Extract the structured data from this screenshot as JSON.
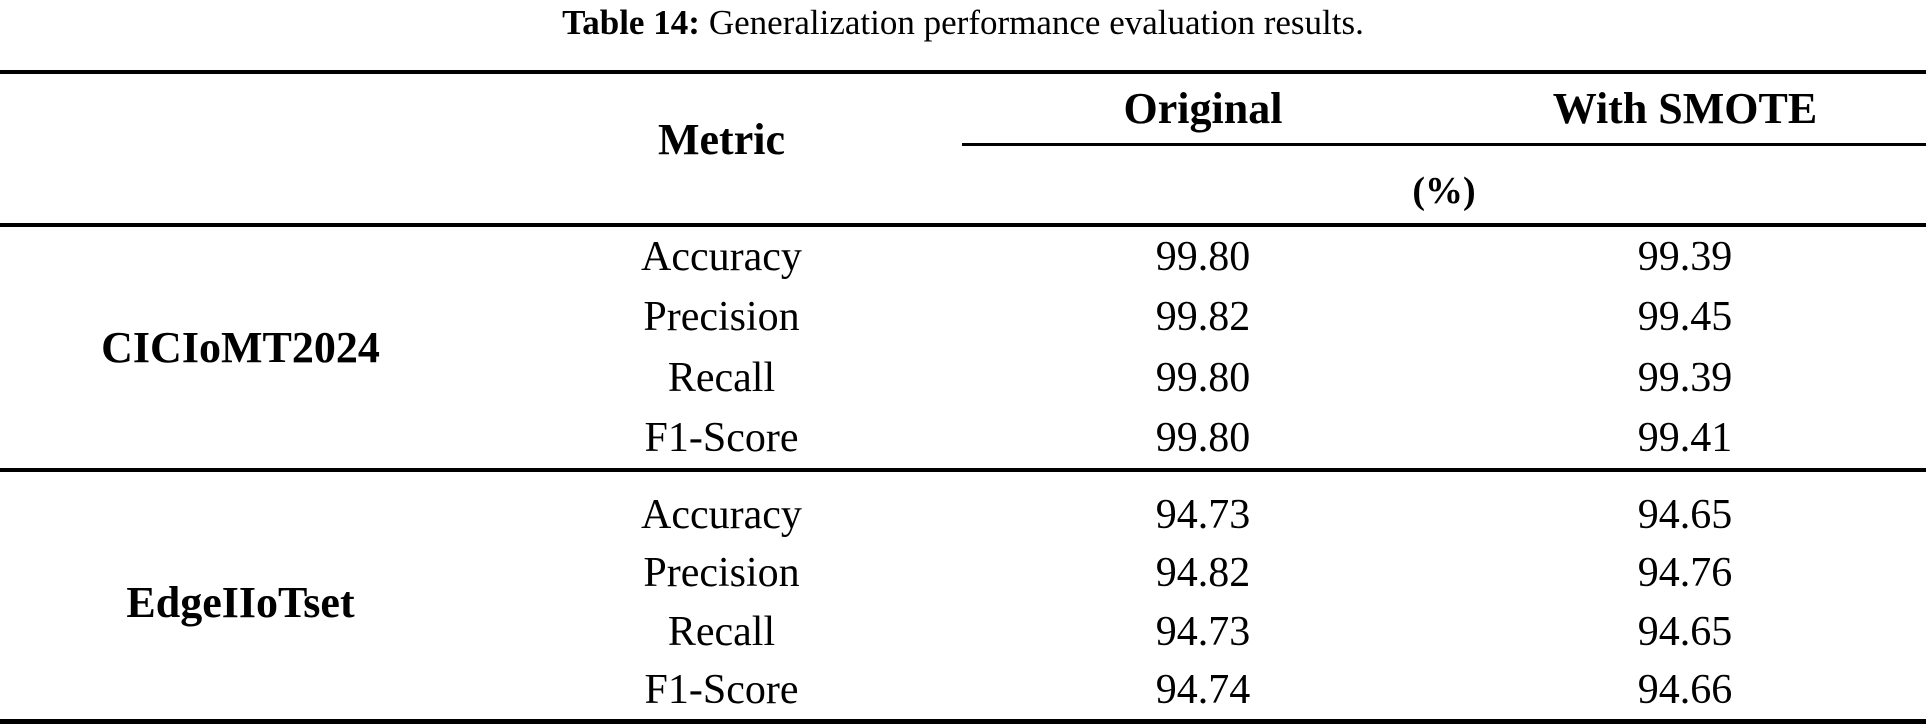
{
  "caption": {
    "label": "Table 14:",
    "text": "Generalization performance evaluation results."
  },
  "header": {
    "metric": "Metric",
    "original": "Original",
    "with_smote": "With SMOTE",
    "unit": "(%)"
  },
  "sections": [
    {
      "dataset": "CICIoMT2024",
      "rows": [
        {
          "metric": "Accuracy",
          "original": "99.80",
          "smote": "99.39"
        },
        {
          "metric": "Precision",
          "original": "99.82",
          "smote": "99.45"
        },
        {
          "metric": "Recall",
          "original": "99.80",
          "smote": "99.39"
        },
        {
          "metric": "F1-Score",
          "original": "99.80",
          "smote": "99.41"
        }
      ]
    },
    {
      "dataset": "EdgeIIoTset",
      "rows": [
        {
          "metric": "Accuracy",
          "original": "94.73",
          "smote": "94.65"
        },
        {
          "metric": "Precision",
          "original": "94.82",
          "smote": "94.76"
        },
        {
          "metric": "Recall",
          "original": "94.73",
          "smote": "94.65"
        },
        {
          "metric": "F1-Score",
          "original": "94.74",
          "smote": "94.66"
        }
      ]
    }
  ],
  "colors": {
    "background": "#ffffff",
    "text": "#000000",
    "rule": "#000000"
  }
}
